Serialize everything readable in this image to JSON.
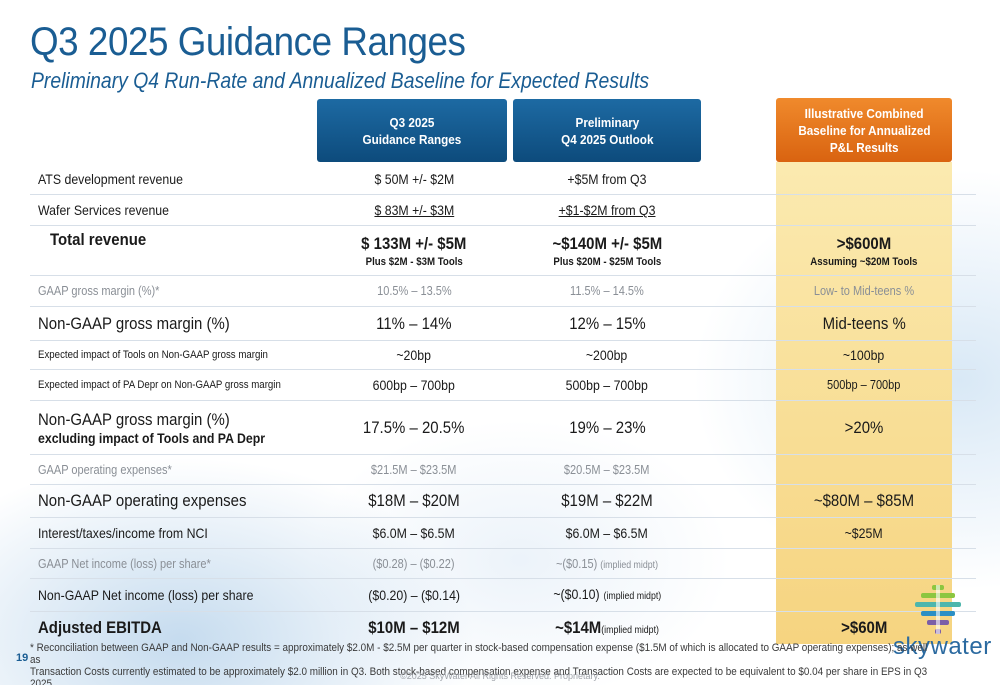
{
  "title": "Q3 2025 Guidance Ranges",
  "subtitle": "Preliminary Q4 Run-Rate and Annualized Baseline for Expected Results",
  "headers": {
    "col1": [
      "Q3 2025",
      "Guidance Ranges"
    ],
    "col2": [
      "Preliminary",
      "Q4 2025 Outlook"
    ],
    "col3": [
      "Illustrative Combined",
      "Baseline for  Annualized",
      "P&L Results"
    ]
  },
  "rows": [
    {
      "label": "ATS development revenue",
      "q3": "$  50M +/- $2M",
      "q4": "+$5M from Q3",
      "combined": ""
    },
    {
      "label": "Wafer Services revenue",
      "q3": "$  83M +/- $3M",
      "q4": "+$1-$2M from Q3",
      "combined": ""
    },
    {
      "label": "Total revenue",
      "q3": "$ 133M +/- $5M",
      "q3_sub": "Plus $2M - $3M Tools",
      "q4": "~$140M +/- $5M",
      "q4_sub": "Plus $20M - $25M Tools",
      "combined": ">$600M",
      "combined_sub": "Assuming ~$20M Tools"
    },
    {
      "label": "GAAP gross margin (%)*",
      "q3": "10.5% – 13.5%",
      "q4": "11.5% – 14.5%",
      "combined": "Low- to Mid-teens %"
    },
    {
      "label": "Non-GAAP gross margin (%)",
      "q3": "11% – 14%",
      "q4": "12% – 15%",
      "combined": "Mid-teens %"
    },
    {
      "label": "Expected impact of Tools on Non-GAAP gross margin",
      "q3": "~20bp",
      "q4": "~200bp",
      "combined": "~100bp"
    },
    {
      "label": "Expected impact of PA Depr on Non-GAAP gross margin",
      "q3": "600bp – 700bp",
      "q4": "500bp – 700bp",
      "combined": "500bp – 700bp"
    },
    {
      "label": "Non-GAAP gross margin (%)",
      "label_sub": "excluding impact of Tools and PA Depr",
      "q3": "17.5% – 20.5%",
      "q4": "19% – 23%",
      "combined": ">20%"
    },
    {
      "label": "GAAP operating expenses*",
      "q3": "$21.5M – $23.5M",
      "q4": "$20.5M – $23.5M",
      "combined": ""
    },
    {
      "label": "Non-GAAP operating expenses",
      "q3": "$18M – $20M",
      "q4": "$19M – $22M",
      "combined": "~$80M – $85M"
    },
    {
      "label": "Interest/taxes/income from NCI",
      "q3": "$6.0M – $6.5M",
      "q4": "$6.0M – $6.5M",
      "combined": "~$25M"
    },
    {
      "label": "GAAP Net income (loss) per share*",
      "q3": "($0.28) – ($0.22)",
      "q4": "~($0.15)",
      "q4_note": "(implied midpt)",
      "combined": ""
    },
    {
      "label": "Non-GAAP Net income (loss) per share",
      "q3": "($0.20) – ($0.14)",
      "q4": "~($0.10)",
      "q4_note": "(implied midpt)",
      "combined": ""
    },
    {
      "label": "Adjusted EBITDA",
      "q3": "$10M – $12M",
      "q4": "~$14M",
      "q4_note": "(implied midpt)",
      "combined": ">$60M"
    }
  ],
  "footnote_line1": "*  Reconciliation between GAAP and Non-GAAP results = approximately $2.0M - $2.5M per quarter in stock-based compensation expense ($1.5M of which is allocated to GAAP operating expenses); as well as",
  "footnote_line2": "Transaction Costs currently estimated to be approximately $2.0 million in Q3. Both stock-based compensation expense and Transaction Costs are expected to be equivalent to $0.04 per share in EPS in Q3 2025.",
  "page_number": "19",
  "copyright": "©2025 SkyWater All Rights Reserved.  Proprietary.",
  "logo_text": "skywater",
  "colors": {
    "brand_blue": "#1a5d93",
    "header_blue": "#0d4b7c",
    "header_orange": "#e8731c",
    "combined_fill": "#f8dd95"
  }
}
